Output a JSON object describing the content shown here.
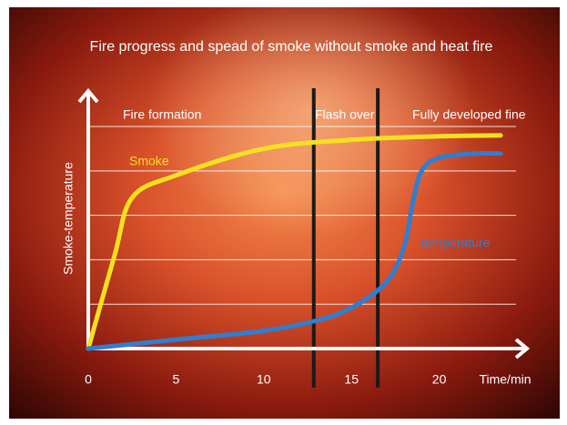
{
  "chart_data": {
    "type": "line",
    "title": "Fire progress and spead of smoke without smoke and heat fire",
    "x_label": "Time/min",
    "y_label": "Smoke-temperature",
    "xlim": [
      0,
      25
    ],
    "xticks": [
      0,
      5,
      10,
      15,
      20
    ],
    "ylim": [
      0,
      5.8
    ],
    "ygrid": [
      1,
      2,
      3,
      4,
      5
    ],
    "grid": true,
    "phases": [
      "Fire formation",
      "Flash over",
      "Fully developed fine"
    ],
    "phase_boundaries": [
      12.85,
      16.5
    ],
    "series": [
      {
        "name": "Smoke",
        "color": "#f5e020",
        "x": [
          0,
          1.5,
          2.5,
          5,
          10,
          15,
          20,
          23.5
        ],
        "values": [
          0,
          2.1,
          3.4,
          3.9,
          4.5,
          4.7,
          4.78,
          4.8
        ]
      },
      {
        "name": "temperature",
        "color": "#2f7fd0",
        "x": [
          0,
          5,
          10,
          13,
          15,
          17,
          18,
          18.5,
          19,
          20,
          22,
          23.5
        ],
        "values": [
          0,
          0.2,
          0.4,
          0.63,
          0.92,
          1.5,
          2.3,
          3.3,
          4.0,
          4.3,
          4.39,
          4.39
        ]
      }
    ]
  }
}
